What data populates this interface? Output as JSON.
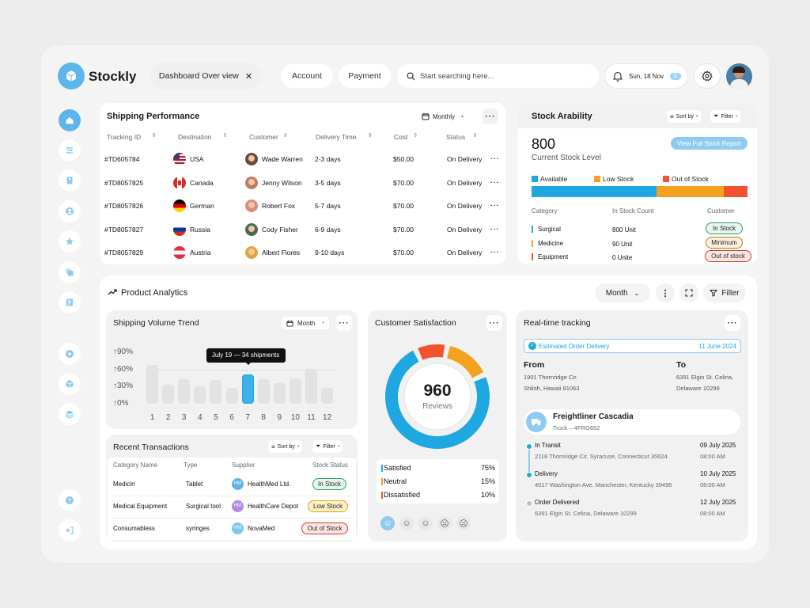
{
  "app": {
    "name": "Stockly"
  },
  "header": {
    "tab_active": "Dashboard Over view",
    "tab_account": "Account",
    "tab_payment": "Payment",
    "search_placeholder": "Start searching here...",
    "date": "Sun, 18 Nov",
    "date_badge": "6"
  },
  "shipping": {
    "title": "Shipping Performance",
    "period": "Monthly",
    "columns": [
      "Tracking ID",
      "Destination",
      "Customer",
      "Delivery Time",
      "Cost",
      "Status"
    ],
    "rows": [
      {
        "id": "#TD605784",
        "dest": "USA",
        "customer": "Wade Warren",
        "time": "2-3 days",
        "cost": "$50.00",
        "status": "On Delivery"
      },
      {
        "id": "#TD8057825",
        "dest": "Canada",
        "customer": "Jenny Wilson",
        "time": "3-5 days",
        "cost": "$70.00",
        "status": "On Delivery"
      },
      {
        "id": "#TD8057826",
        "dest": "German",
        "customer": "Robert Fox",
        "time": "5-7 days",
        "cost": "$70.00",
        "status": "On Delivery"
      },
      {
        "id": "#TD8057827",
        "dest": "Russia",
        "customer": "Cody Fisher",
        "time": "6-9 days",
        "cost": "$70.00",
        "status": "On Delivery"
      },
      {
        "id": "#TD8057829",
        "dest": "Austria",
        "customer": "Albert Flores",
        "time": "9-10 days",
        "cost": "$70.00",
        "status": "On Delivery"
      }
    ]
  },
  "stock": {
    "title": "Stock Arability",
    "sort": "Sort by",
    "filter": "Filter",
    "value": "800",
    "subtitle": "Current Stock Level",
    "report_button": "View Full Stock Report",
    "legend": [
      {
        "label": "Available",
        "color": "#1ea7e1"
      },
      {
        "label": "Low Stock",
        "color": "#f4a11f"
      },
      {
        "label": "Out of Stock",
        "color": "#f2532f"
      }
    ],
    "level_fractions": [
      0.58,
      0.31,
      0.11
    ],
    "columns": [
      "Category",
      "In Stock Count",
      "Customer"
    ],
    "rows": [
      {
        "category": "Surgical",
        "count": "800 Unit",
        "status": "In Stock",
        "color": "#1ea7e1"
      },
      {
        "category": "Medicine",
        "count": "90 Unit",
        "status": "Minimum",
        "color": "#f4a11f"
      },
      {
        "category": "Equipment",
        "count": "0 Unite",
        "status": "Out of stock",
        "color": "#f2532f"
      }
    ]
  },
  "analytics": {
    "title": "Product Analytics",
    "period": "Month",
    "filter": "Filter"
  },
  "trend": {
    "title": "Shipping Volume Trend",
    "period": "Month",
    "tooltip": "July 19 — 34 shipments"
  },
  "chart_data": {
    "type": "bar",
    "categories": [
      "1",
      "2",
      "3",
      "4",
      "5",
      "6",
      "7",
      "8",
      "9",
      "10",
      "11",
      "12"
    ],
    "values": [
      68,
      33,
      43,
      30,
      42,
      28,
      52,
      43,
      36,
      44,
      61,
      28
    ],
    "highlight_index": 6,
    "ylim": [
      0,
      100
    ],
    "yticks": [
      "↑0%",
      "↑30%",
      "↑60%",
      "↑90%"
    ],
    "ytick_values": [
      0,
      30,
      60,
      90
    ]
  },
  "transactions": {
    "title": "Recent Transactions",
    "sort": "Sort by",
    "filter": "Filter",
    "columns": [
      "Category Name",
      "Type",
      "Supplier",
      "Stock Status"
    ],
    "rows": [
      {
        "category": "Medicin",
        "type": "Tablet",
        "initials": "HM",
        "supplier": "HealthMed Ltd.",
        "status": "In Stock",
        "avatar_color": "#5fb3e8"
      },
      {
        "category": "Medical Equipment",
        "type": "Surgical tool",
        "initials": "HM",
        "supplier": "HealthCare Depot",
        "status": "Low Stock",
        "avatar_color": "#b487e6"
      },
      {
        "category": "Consumabless",
        "type": "syringes",
        "initials": "HM",
        "supplier": "NovaMed",
        "status": "Out of Stock",
        "avatar_color": "#7cc8e8"
      }
    ]
  },
  "satisfaction": {
    "title": "Customer Satisfaction",
    "value": "960",
    "label": "Reviews",
    "rows": [
      {
        "label": "Satisfied",
        "pct": "75%",
        "color": "#1ea7e1",
        "fraction": 0.75
      },
      {
        "label": "Neutral",
        "pct": "15%",
        "color": "#f4a11f",
        "fraction": 0.15
      },
      {
        "label": "Dissatisfied",
        "pct": "10%",
        "color": "#f2532f",
        "fraction": 0.1
      }
    ]
  },
  "tracking": {
    "title": "Real-time tracking",
    "estimated_label": "Estimated Order Delivery",
    "estimated_date": "11 June 2024",
    "from_label": "From",
    "from_address_1": "1901 Thornridge Cir.",
    "from_address_2": "Shiloh, Hawaii 81063",
    "to_label": "To",
    "to_address_1": "6391 Elgin St. Celina,",
    "to_address_2": "Delaware 10299",
    "vehicle": "Freightliner Cascadia",
    "vehicle_sub": "Truck – 4FRG652",
    "events": [
      {
        "status": "In Transit",
        "address": "2118 Thornridge Cir. Syracuse, Connecticut 35624",
        "date": "09 July 2025",
        "time": "08:00 AM"
      },
      {
        "status": "Delivery",
        "address": "4517 Washington Ave. Manchester, Kentucky 39495",
        "date": "10 July 2025",
        "time": "08:00 AM"
      },
      {
        "status": "Order Delivered",
        "address": "6391 Elgin St. Celina, Delaware 10299",
        "date": "12 July 2025",
        "time": "08:00 AM"
      }
    ]
  },
  "colors": {
    "accent": "#1ea7e1",
    "orange": "#f4a11f",
    "red": "#f2532f"
  }
}
